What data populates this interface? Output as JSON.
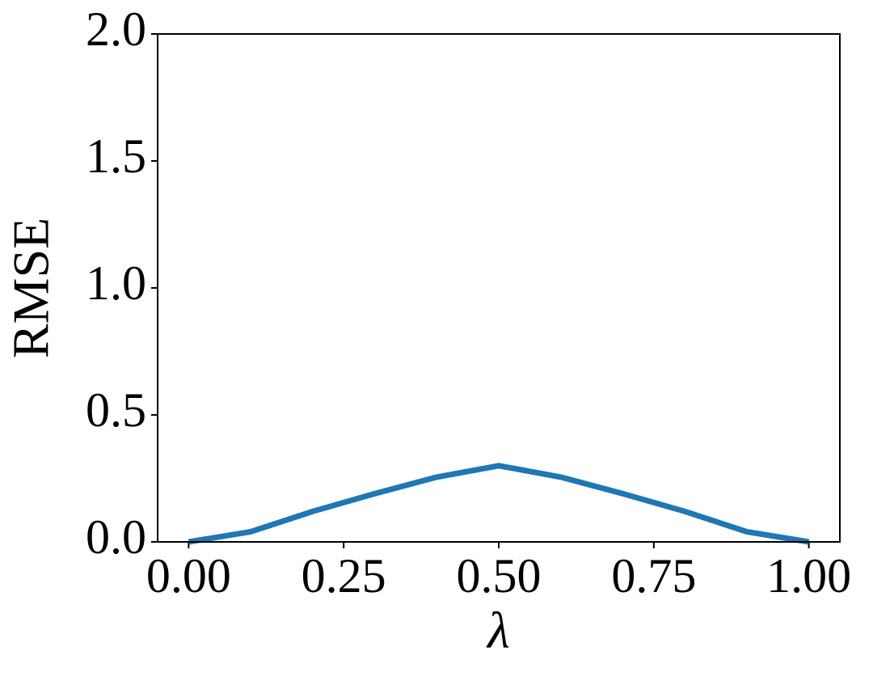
{
  "chart_data": {
    "type": "line",
    "xlabel": "λ",
    "ylabel": "RMSE",
    "x": [
      0,
      0.1,
      0.2,
      0.3,
      0.4,
      0.5,
      0.6,
      0.7,
      0.8,
      0.9,
      1.0
    ],
    "series": [
      {
        "color": "#1f77b4",
        "values": [
          0,
          0.04,
          0.12,
          0.19,
          0.255,
          0.3,
          0.255,
          0.19,
          0.12,
          0.04,
          0
        ]
      }
    ],
    "xlim": [
      -0.05,
      1.05
    ],
    "xticks": [
      {
        "value": 0,
        "label": "0.00"
      },
      0.25,
      {
        "value": 0.5,
        "label": "0.50"
      },
      0.75,
      {
        "value": 1,
        "label": "1.00"
      }
    ],
    "ylim": [
      0,
      2
    ],
    "yticks": [
      {
        "value": 0,
        "label": "0.0"
      },
      0.5,
      {
        "value": 1,
        "label": "1.0"
      },
      1.5,
      {
        "value": 2,
        "label": "2.0"
      }
    ],
    "grid": false
  }
}
